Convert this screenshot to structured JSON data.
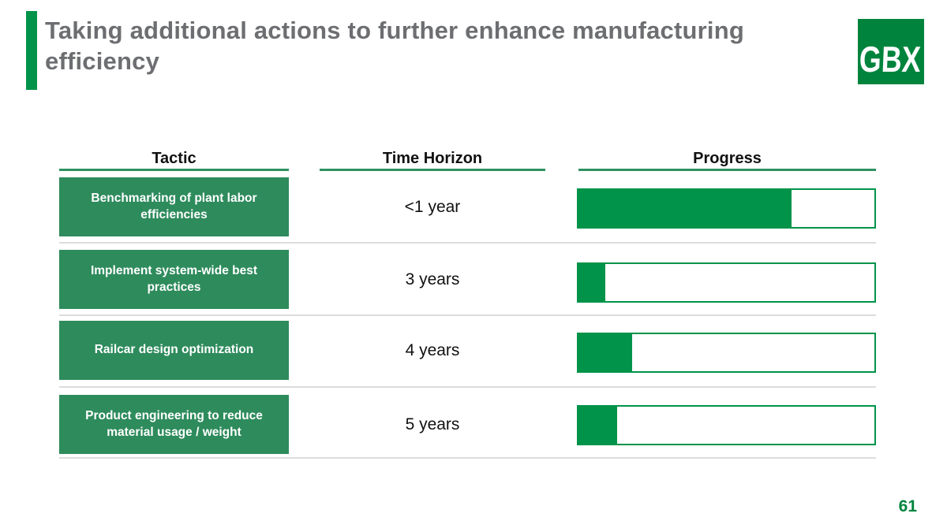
{
  "slide": {
    "title": "Taking additional actions to further enhance manufacturing efficiency",
    "page_number": "61",
    "logo": {
      "text": "GBX"
    }
  },
  "colors": {
    "brand_green": "#009349",
    "tactic_box_green": "#2e8b5c",
    "underline_green": "#2e9160",
    "logo_green": "#00843d",
    "title_gray": "#6d6e71",
    "separator_gray": "#dcdcdc"
  },
  "table": {
    "headers": {
      "tactic": "Tactic",
      "time_horizon": "Time Horizon",
      "progress": "Progress"
    },
    "rows": [
      {
        "tactic": "Benchmarking of plant labor efficiencies",
        "time_horizon": "<1 year",
        "progress_pct": 72
      },
      {
        "tactic": "Implement system-wide best practices",
        "time_horizon": "3 years",
        "progress_pct": 9
      },
      {
        "tactic": "Railcar design optimization",
        "time_horizon": "4 years",
        "progress_pct": 18
      },
      {
        "tactic": "Product engineering to reduce material usage / weight",
        "time_horizon": "5 years",
        "progress_pct": 13
      }
    ]
  }
}
